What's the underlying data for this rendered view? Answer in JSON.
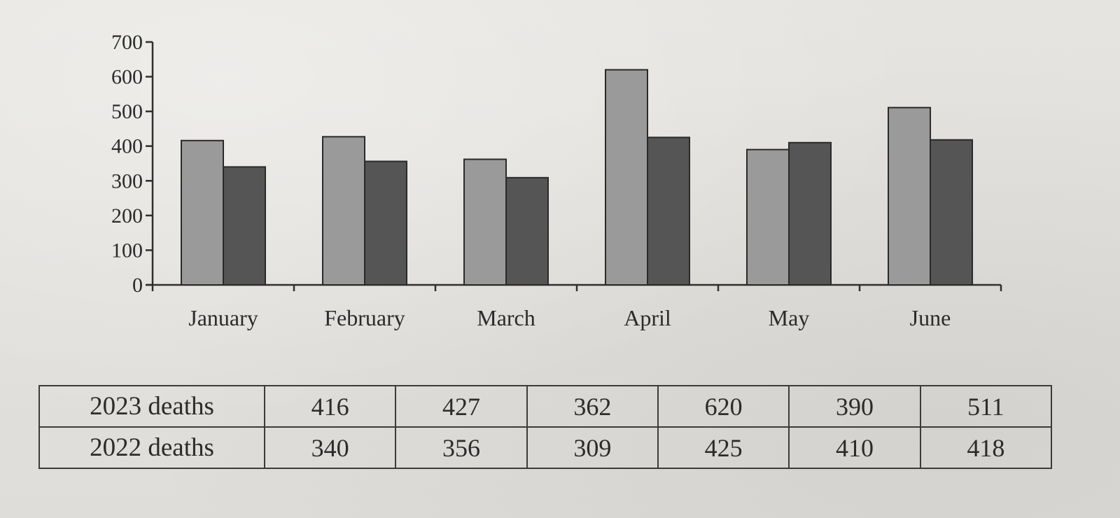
{
  "chart_data": {
    "type": "bar",
    "categories": [
      "January",
      "February",
      "March",
      "April",
      "May",
      "June"
    ],
    "series": [
      {
        "name": "2023 deaths",
        "values": [
          416,
          427,
          362,
          620,
          390,
          511
        ]
      },
      {
        "name": "2022 deaths",
        "values": [
          340,
          356,
          309,
          425,
          410,
          418
        ]
      }
    ],
    "y_ticks": [
      "0",
      "100",
      "200",
      "300",
      "400",
      "500",
      "600",
      "700"
    ],
    "ylim": [
      0,
      700
    ],
    "grid": false,
    "colors": {
      "series_light": "#9a9a9a",
      "series_dark": "#555555"
    }
  },
  "table": {
    "rows": [
      {
        "label": "2023 deaths",
        "values": [
          "416",
          "427",
          "362",
          "620",
          "390",
          "511"
        ]
      },
      {
        "label": "2022 deaths",
        "values": [
          "340",
          "356",
          "309",
          "425",
          "410",
          "418"
        ]
      }
    ]
  }
}
